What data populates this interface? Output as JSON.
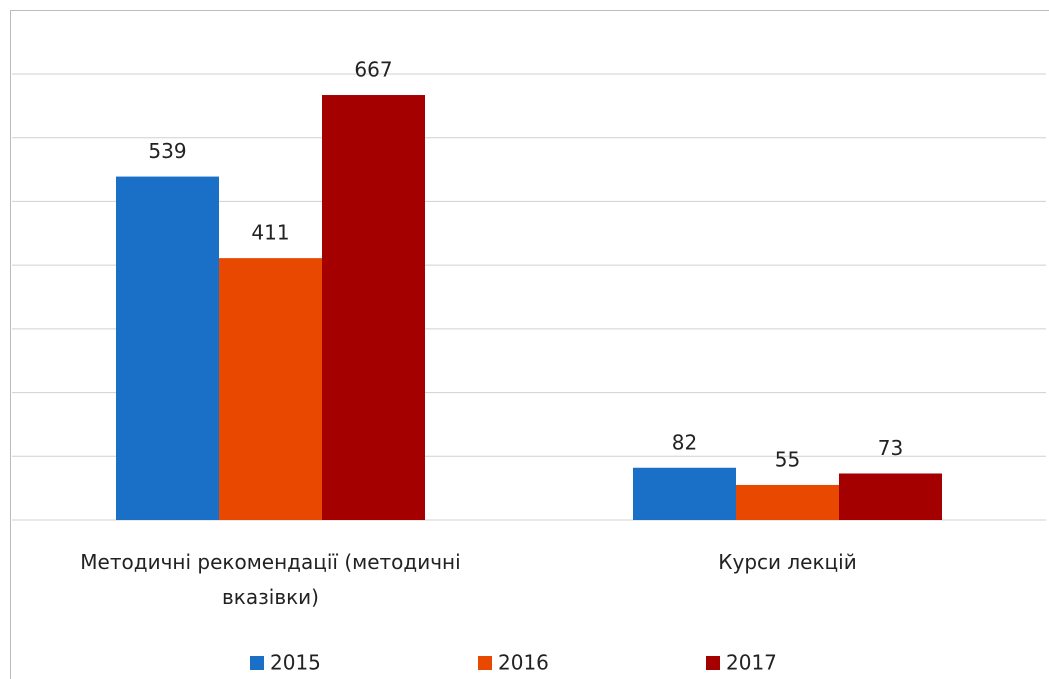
{
  "chart_data": {
    "type": "bar",
    "categories": [
      "Методичні рекомендації (методичні вказівки)",
      "Курси лекцій"
    ],
    "series": [
      {
        "name": "2015",
        "color": "#1a6fc6",
        "values": [
          539,
          82
        ]
      },
      {
        "name": "2016",
        "color": "#e84800",
        "values": [
          411,
          55
        ]
      },
      {
        "name": "2017",
        "color": "#a50000",
        "values": [
          667,
          73
        ]
      }
    ],
    "ylim": [
      0,
      700
    ],
    "yticks": [
      0,
      100,
      200,
      300,
      400,
      500,
      600,
      700
    ],
    "grid": true,
    "legend": "bottom"
  }
}
